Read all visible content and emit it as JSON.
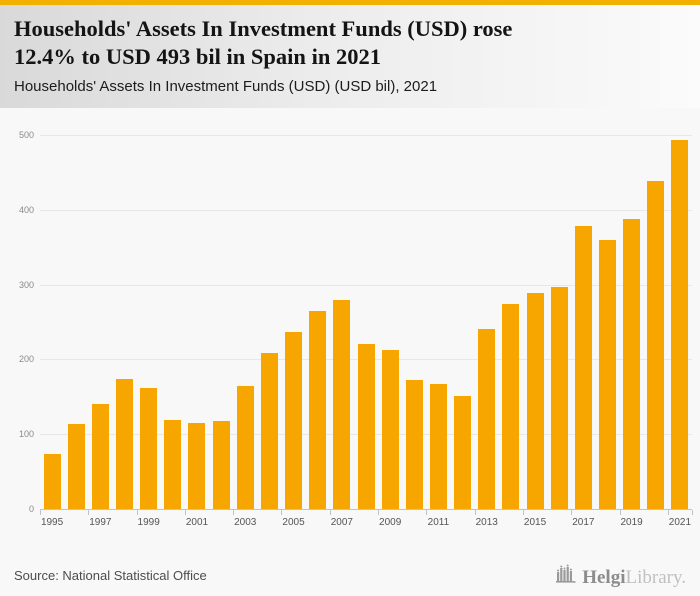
{
  "page": {
    "background_color": "#f8f8f8",
    "top_strip_color": "#f2b100"
  },
  "header": {
    "title_line1": "Households' Assets In Investment Funds (USD) rose",
    "title_line2": "12.4% to USD 493 bil in Spain in 2021",
    "subtitle": "Households' Assets In Investment Funds (USD) (USD bil), 2021"
  },
  "chart_data": {
    "type": "bar",
    "title": "Households' Assets In Investment Funds (USD) (USD bil), 2021",
    "categories": [
      1995,
      1996,
      1997,
      1998,
      1999,
      2000,
      2001,
      2002,
      2003,
      2004,
      2005,
      2006,
      2007,
      2008,
      2009,
      2010,
      2011,
      2012,
      2013,
      2014,
      2015,
      2016,
      2017,
      2018,
      2019,
      2020,
      2021
    ],
    "values": [
      74,
      113,
      140,
      174,
      162,
      119,
      115,
      118,
      164,
      208,
      237,
      265,
      280,
      220,
      212,
      172,
      167,
      151,
      241,
      274,
      289,
      297,
      378,
      359,
      388,
      439,
      493
    ],
    "xlabel": "",
    "ylabel": "",
    "ylim": [
      0,
      500
    ],
    "yticks": [
      0,
      100,
      200,
      300,
      400,
      500
    ],
    "x_label_step": 2,
    "grid": true,
    "legend_position": "none",
    "bar_color": "#f7a600",
    "axis_color": "#bcc4d4",
    "gridline_color": "#e7e7e7"
  },
  "footer": {
    "source": "Source: National Statistical Office",
    "logo_primary": "Helgi",
    "logo_secondary": "Library."
  }
}
